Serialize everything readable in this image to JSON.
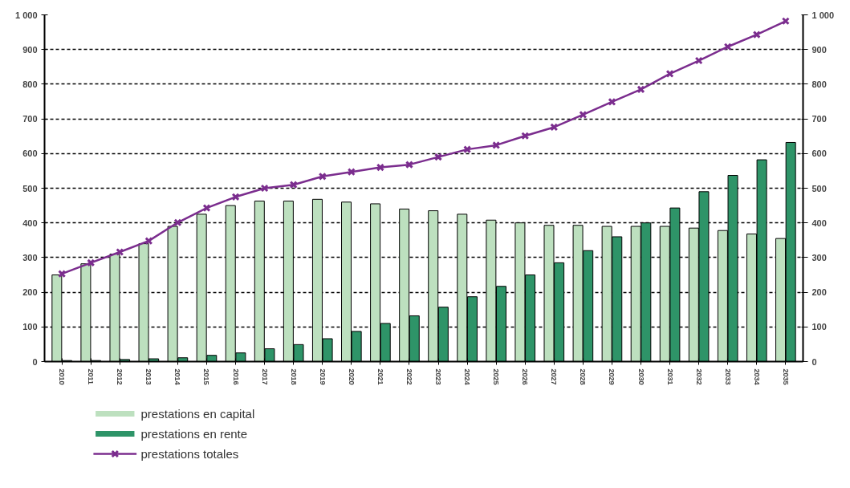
{
  "chart_data": {
    "type": "bar",
    "categories": [
      "2010",
      "2011",
      "2012",
      "2013",
      "2014",
      "2015",
      "2016",
      "2017",
      "2018",
      "2019",
      "2020",
      "2021",
      "2022",
      "2023",
      "2024",
      "2025",
      "2026",
      "2027",
      "2028",
      "2029",
      "2030",
      "2031",
      "2032",
      "2033",
      "2034",
      "2035"
    ],
    "series": [
      {
        "name": "prestations en capital",
        "color": "#bde0bf",
        "values": [
          250,
          282,
          310,
          340,
          390,
          425,
          450,
          463,
          463,
          468,
          460,
          455,
          440,
          435,
          425,
          408,
          400,
          393,
          393,
          390,
          390,
          390,
          385,
          378,
          368,
          355
        ]
      },
      {
        "name": "prestations en rente",
        "color": "#2e9468",
        "values": [
          3,
          3,
          6,
          8,
          11,
          18,
          25,
          37,
          49,
          66,
          87,
          110,
          132,
          157,
          187,
          217,
          250,
          285,
          320,
          360,
          400,
          443,
          490,
          537,
          582,
          632
        ]
      },
      {
        "name": "prestations totales",
        "type": "line",
        "color": "#7b2d8e",
        "marker": "cross",
        "values": [
          253,
          285,
          316,
          348,
          401,
          443,
          475,
          500,
          510,
          534,
          547,
          560,
          568,
          590,
          612,
          624,
          651,
          676,
          712,
          749,
          785,
          830,
          868,
          908,
          943,
          982
        ]
      }
    ],
    "ylim": [
      0,
      1000
    ],
    "yticks": [
      0,
      100,
      200,
      300,
      400,
      500,
      600,
      700,
      800,
      900,
      {
        "value": 1000,
        "label": "1 000"
      }
    ],
    "y2lim": [
      0,
      1000
    ],
    "y2ticks": [
      0,
      100,
      200,
      300,
      400,
      500,
      600,
      700,
      800,
      900,
      {
        "value": 1000,
        "label": "1 000"
      }
    ],
    "grid": "y",
    "legend": "bottom left"
  }
}
